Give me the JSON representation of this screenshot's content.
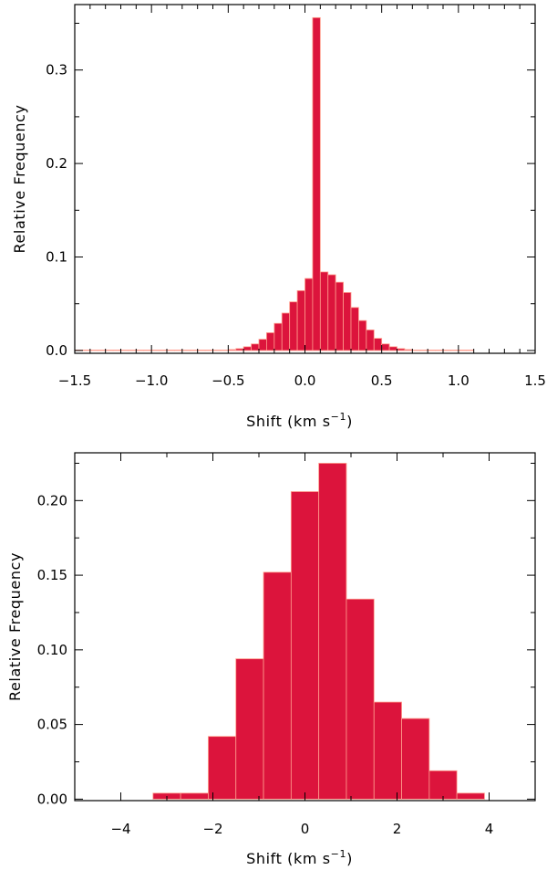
{
  "chart_data": [
    {
      "type": "bar",
      "xlabel": "Shift (km s",
      "xlabel_sup": "−1",
      "xlabel_close": ")",
      "ylabel": "Relative Frequency",
      "xlim": [
        -1.5,
        1.5
      ],
      "ylim": [
        -0.003,
        0.37
      ],
      "xticks": [
        "−1.5",
        "−1.0",
        "−0.5",
        "0.0",
        "0.5",
        "1.0",
        "1.5"
      ],
      "xtick_values": [
        -1.5,
        -1.0,
        -0.5,
        0.0,
        0.5,
        1.0,
        1.5
      ],
      "yticks": [
        "0.0",
        "0.1",
        "0.2",
        "0.3"
      ],
      "ytick_values": [
        0.0,
        0.1,
        0.2,
        0.3
      ],
      "bar_color": "#dc143c",
      "bin_edges": [
        -1.5,
        -1.45,
        -1.4,
        -1.35,
        -1.3,
        -1.25,
        -1.2,
        -1.15,
        -1.1,
        -1.05,
        -1.0,
        -0.95,
        -0.9,
        -0.85,
        -0.8,
        -0.75,
        -0.7,
        -0.65,
        -0.6,
        -0.55,
        -0.5,
        -0.45,
        -0.4,
        -0.35,
        -0.3,
        -0.25,
        -0.2,
        -0.15,
        -0.1,
        -0.05,
        0.0,
        0.05,
        0.1,
        0.15,
        0.2,
        0.25,
        0.3,
        0.35,
        0.4,
        0.45,
        0.5,
        0.55,
        0.6,
        0.65,
        0.7,
        0.75,
        0.8,
        0.85,
        0.9,
        0.95,
        1.0,
        1.05,
        1.1
      ],
      "values": [
        0.0005,
        0.0005,
        0.0005,
        0.0005,
        0.0005,
        0.0005,
        0.0005,
        0.0005,
        0.0005,
        0.0005,
        0.0005,
        0.0005,
        0.0005,
        0.0005,
        0.0005,
        0.0005,
        0.0005,
        0.0005,
        0.0005,
        0.0005,
        0.001,
        0.002,
        0.004,
        0.007,
        0.012,
        0.019,
        0.029,
        0.04,
        0.052,
        0.064,
        0.077,
        0.356,
        0.084,
        0.081,
        0.073,
        0.062,
        0.046,
        0.032,
        0.022,
        0.013,
        0.007,
        0.004,
        0.002,
        0.001,
        0.0005,
        0.0005,
        0.0005,
        0.0005,
        0.0005,
        0.0005,
        0.0005,
        0.0005
      ]
    },
    {
      "type": "bar",
      "xlabel": "Shift (km s",
      "xlabel_sup": "−1",
      "xlabel_close": ")",
      "ylabel": "Relative Frequency",
      "xlim": [
        -5,
        5
      ],
      "ylim": [
        -0.001,
        0.232
      ],
      "xticks": [
        "−4",
        "−2",
        "0",
        "2",
        "4"
      ],
      "xtick_values": [
        -4,
        -2,
        0,
        2,
        4
      ],
      "yticks": [
        "0.00",
        "0.05",
        "0.10",
        "0.15",
        "0.20"
      ],
      "ytick_values": [
        0.0,
        0.05,
        0.1,
        0.15,
        0.2
      ],
      "bar_color": "#dc143c",
      "bin_edges": [
        -3.3,
        -2.7,
        -2.1,
        -1.5,
        -0.9,
        -0.3,
        0.3,
        0.9,
        1.5,
        2.1,
        2.7,
        3.3,
        3.9
      ],
      "values": [
        0.004,
        0.004,
        0.042,
        0.094,
        0.152,
        0.206,
        0.225,
        0.134,
        0.065,
        0.054,
        0.019,
        0.004
      ]
    }
  ]
}
